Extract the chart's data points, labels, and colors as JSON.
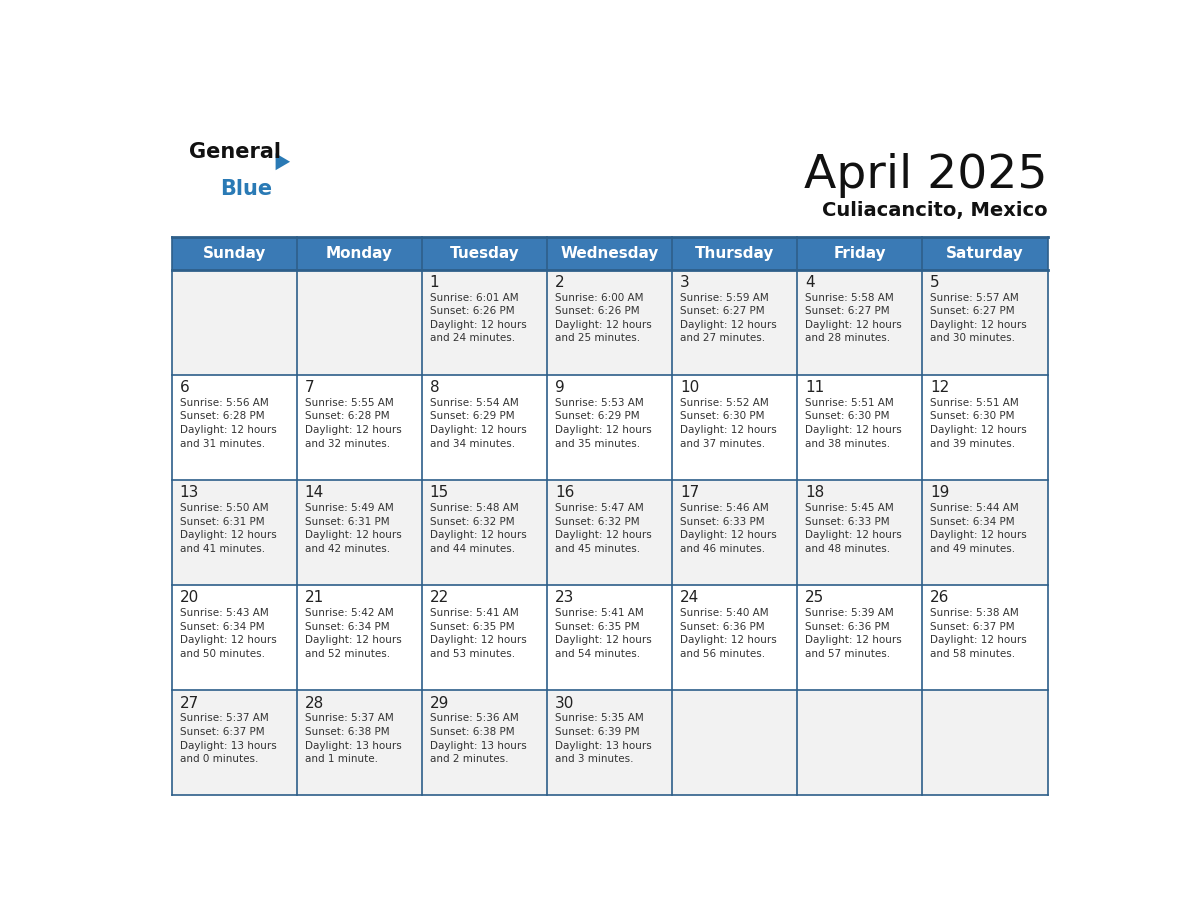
{
  "title": "April 2025",
  "subtitle": "Culiacancito, Mexico",
  "days_of_week": [
    "Sunday",
    "Monday",
    "Tuesday",
    "Wednesday",
    "Thursday",
    "Friday",
    "Saturday"
  ],
  "header_bg_color": "#3a7ab5",
  "header_text_color": "#ffffff",
  "cell_bg_even": "#f2f2f2",
  "cell_bg_odd": "#ffffff",
  "border_color": "#2e5f8a",
  "day_number_color": "#222222",
  "cell_text_color": "#333333",
  "title_color": "#111111",
  "subtitle_color": "#111111",
  "logo_general_color": "#111111",
  "logo_blue_color": "#2a7ab5",
  "logo_triangle_color": "#2a7ab5",
  "weeks": [
    [
      {
        "day": null,
        "info": null
      },
      {
        "day": null,
        "info": null
      },
      {
        "day": "1",
        "info": "Sunrise: 6:01 AM\nSunset: 6:26 PM\nDaylight: 12 hours\nand 24 minutes."
      },
      {
        "day": "2",
        "info": "Sunrise: 6:00 AM\nSunset: 6:26 PM\nDaylight: 12 hours\nand 25 minutes."
      },
      {
        "day": "3",
        "info": "Sunrise: 5:59 AM\nSunset: 6:27 PM\nDaylight: 12 hours\nand 27 minutes."
      },
      {
        "day": "4",
        "info": "Sunrise: 5:58 AM\nSunset: 6:27 PM\nDaylight: 12 hours\nand 28 minutes."
      },
      {
        "day": "5",
        "info": "Sunrise: 5:57 AM\nSunset: 6:27 PM\nDaylight: 12 hours\nand 30 minutes."
      }
    ],
    [
      {
        "day": "6",
        "info": "Sunrise: 5:56 AM\nSunset: 6:28 PM\nDaylight: 12 hours\nand 31 minutes."
      },
      {
        "day": "7",
        "info": "Sunrise: 5:55 AM\nSunset: 6:28 PM\nDaylight: 12 hours\nand 32 minutes."
      },
      {
        "day": "8",
        "info": "Sunrise: 5:54 AM\nSunset: 6:29 PM\nDaylight: 12 hours\nand 34 minutes."
      },
      {
        "day": "9",
        "info": "Sunrise: 5:53 AM\nSunset: 6:29 PM\nDaylight: 12 hours\nand 35 minutes."
      },
      {
        "day": "10",
        "info": "Sunrise: 5:52 AM\nSunset: 6:30 PM\nDaylight: 12 hours\nand 37 minutes."
      },
      {
        "day": "11",
        "info": "Sunrise: 5:51 AM\nSunset: 6:30 PM\nDaylight: 12 hours\nand 38 minutes."
      },
      {
        "day": "12",
        "info": "Sunrise: 5:51 AM\nSunset: 6:30 PM\nDaylight: 12 hours\nand 39 minutes."
      }
    ],
    [
      {
        "day": "13",
        "info": "Sunrise: 5:50 AM\nSunset: 6:31 PM\nDaylight: 12 hours\nand 41 minutes."
      },
      {
        "day": "14",
        "info": "Sunrise: 5:49 AM\nSunset: 6:31 PM\nDaylight: 12 hours\nand 42 minutes."
      },
      {
        "day": "15",
        "info": "Sunrise: 5:48 AM\nSunset: 6:32 PM\nDaylight: 12 hours\nand 44 minutes."
      },
      {
        "day": "16",
        "info": "Sunrise: 5:47 AM\nSunset: 6:32 PM\nDaylight: 12 hours\nand 45 minutes."
      },
      {
        "day": "17",
        "info": "Sunrise: 5:46 AM\nSunset: 6:33 PM\nDaylight: 12 hours\nand 46 minutes."
      },
      {
        "day": "18",
        "info": "Sunrise: 5:45 AM\nSunset: 6:33 PM\nDaylight: 12 hours\nand 48 minutes."
      },
      {
        "day": "19",
        "info": "Sunrise: 5:44 AM\nSunset: 6:34 PM\nDaylight: 12 hours\nand 49 minutes."
      }
    ],
    [
      {
        "day": "20",
        "info": "Sunrise: 5:43 AM\nSunset: 6:34 PM\nDaylight: 12 hours\nand 50 minutes."
      },
      {
        "day": "21",
        "info": "Sunrise: 5:42 AM\nSunset: 6:34 PM\nDaylight: 12 hours\nand 52 minutes."
      },
      {
        "day": "22",
        "info": "Sunrise: 5:41 AM\nSunset: 6:35 PM\nDaylight: 12 hours\nand 53 minutes."
      },
      {
        "day": "23",
        "info": "Sunrise: 5:41 AM\nSunset: 6:35 PM\nDaylight: 12 hours\nand 54 minutes."
      },
      {
        "day": "24",
        "info": "Sunrise: 5:40 AM\nSunset: 6:36 PM\nDaylight: 12 hours\nand 56 minutes."
      },
      {
        "day": "25",
        "info": "Sunrise: 5:39 AM\nSunset: 6:36 PM\nDaylight: 12 hours\nand 57 minutes."
      },
      {
        "day": "26",
        "info": "Sunrise: 5:38 AM\nSunset: 6:37 PM\nDaylight: 12 hours\nand 58 minutes."
      }
    ],
    [
      {
        "day": "27",
        "info": "Sunrise: 5:37 AM\nSunset: 6:37 PM\nDaylight: 13 hours\nand 0 minutes."
      },
      {
        "day": "28",
        "info": "Sunrise: 5:37 AM\nSunset: 6:38 PM\nDaylight: 13 hours\nand 1 minute."
      },
      {
        "day": "29",
        "info": "Sunrise: 5:36 AM\nSunset: 6:38 PM\nDaylight: 13 hours\nand 2 minutes."
      },
      {
        "day": "30",
        "info": "Sunrise: 5:35 AM\nSunset: 6:39 PM\nDaylight: 13 hours\nand 3 minutes."
      },
      {
        "day": null,
        "info": null
      },
      {
        "day": null,
        "info": null
      },
      {
        "day": null,
        "info": null
      }
    ]
  ]
}
